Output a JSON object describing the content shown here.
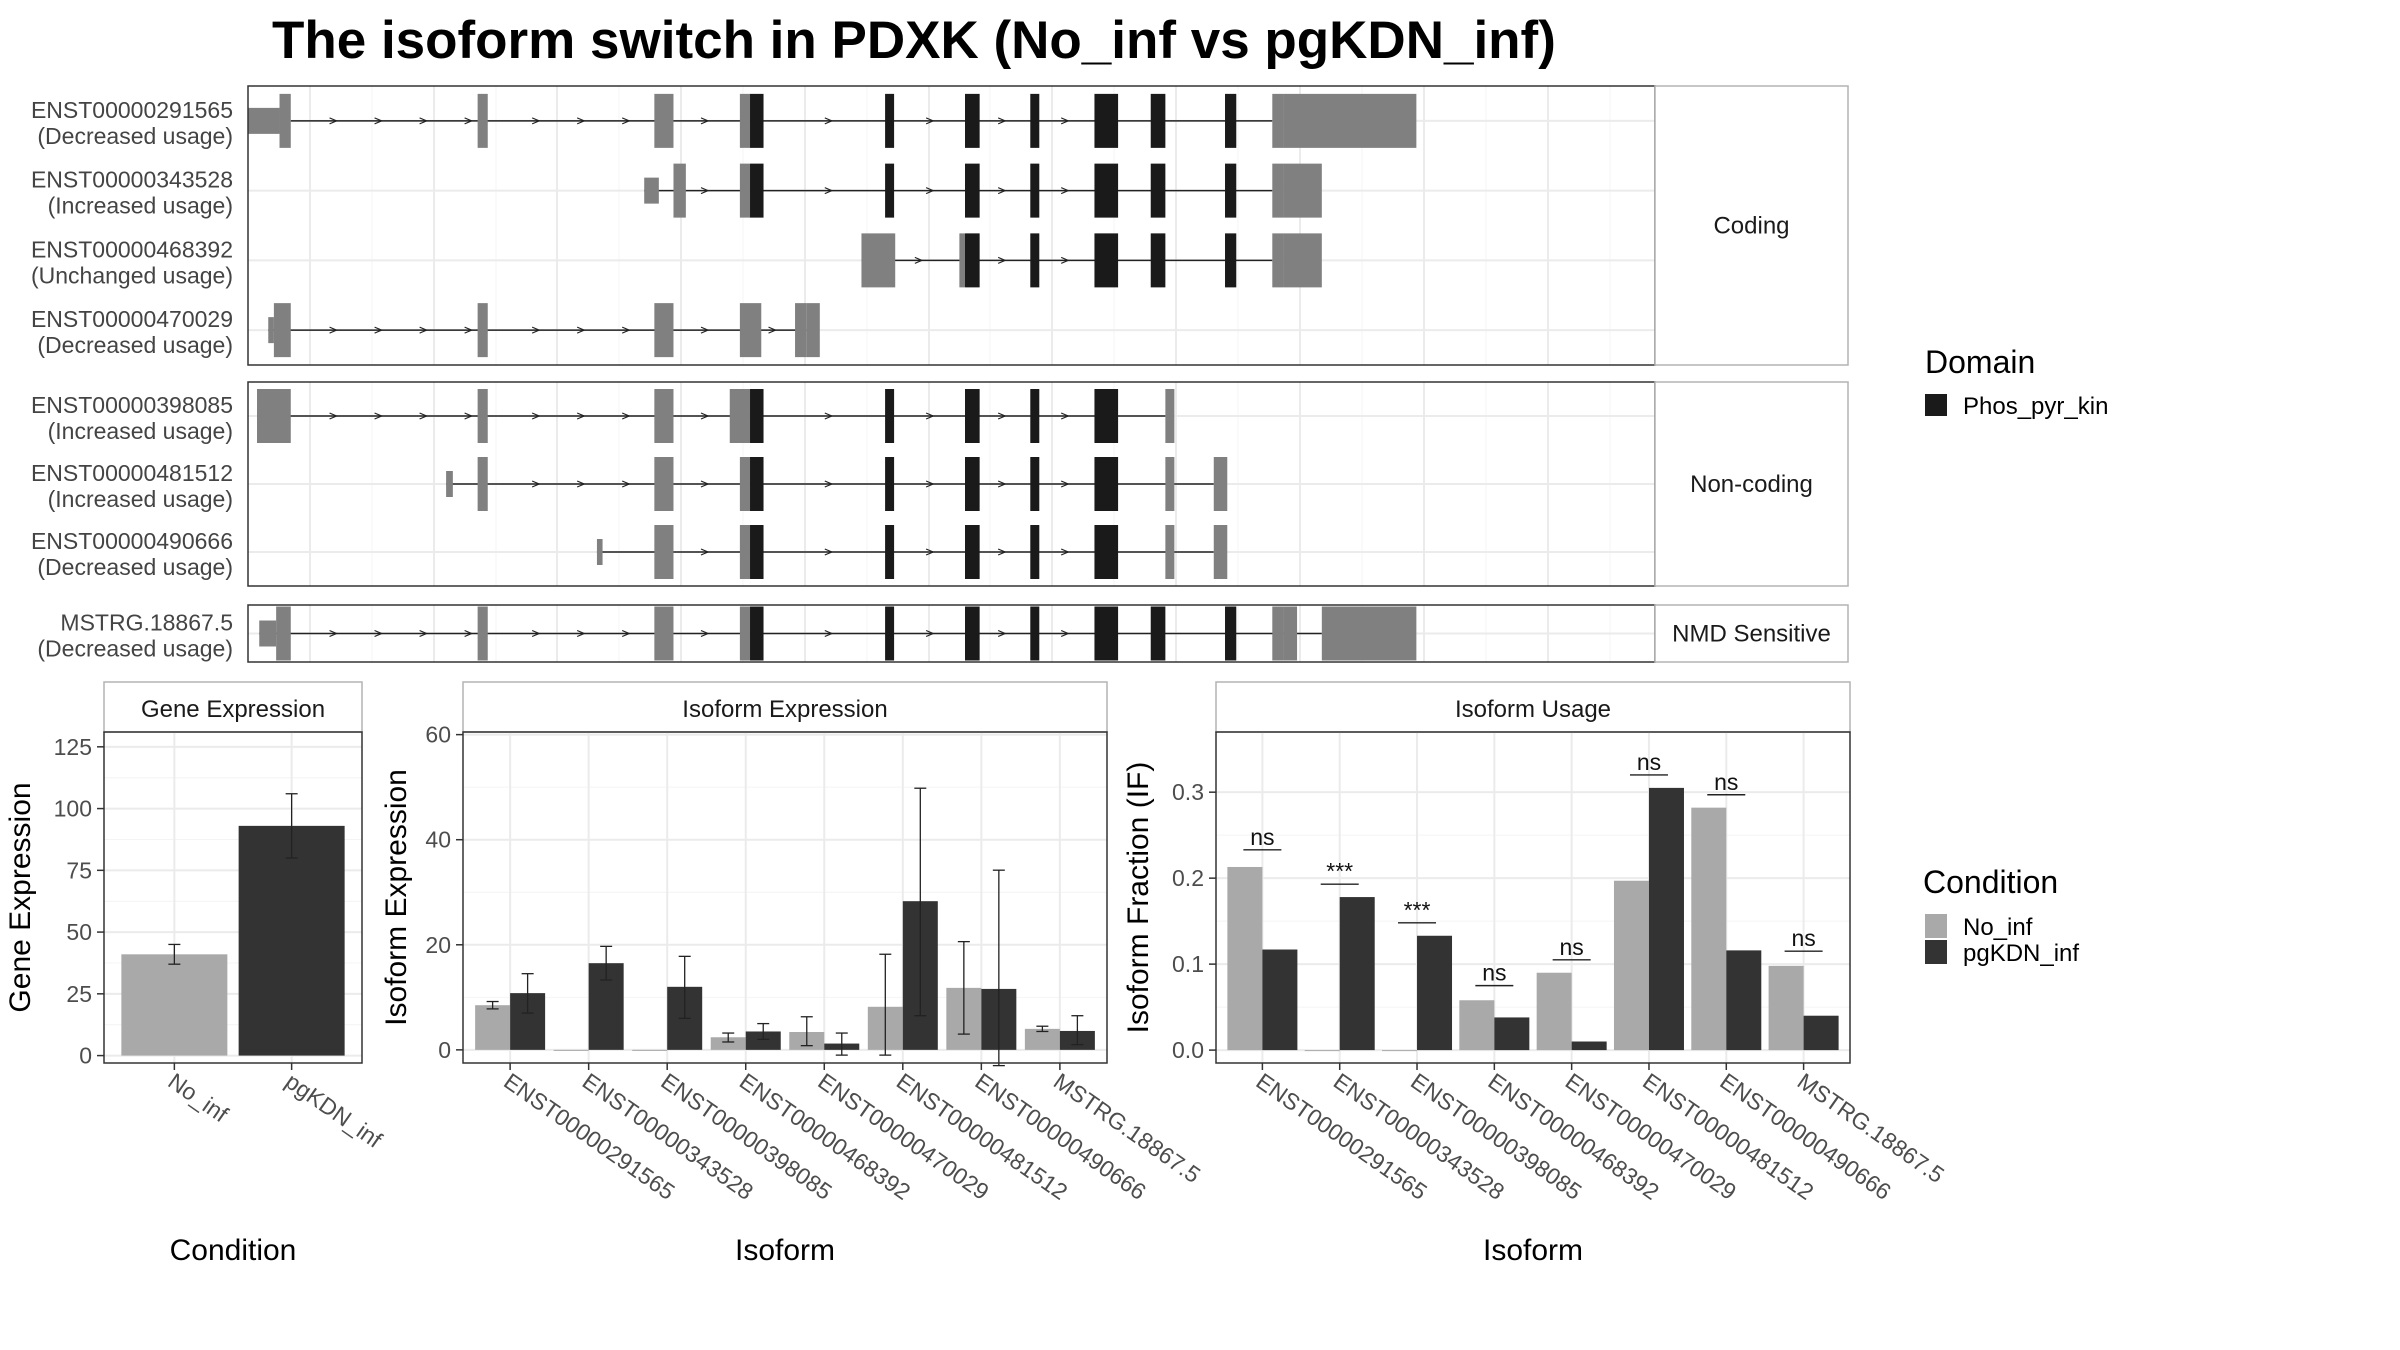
{
  "title": "The isoform switch in PDXK (No_inf vs pgKDN_inf)",
  "colors": {
    "no_inf": "#a9a9a9",
    "pgkdn_inf": "#333333",
    "domain": "#1a1a1a",
    "utr": "#808080",
    "grid": "#ebebeb",
    "panel_border": "#333333",
    "strip_border": "#b3b3b3"
  },
  "chart_data": [
    {
      "type": "gene-structure",
      "x_range": [
        0,
        1250
      ],
      "groups": [
        {
          "name": "Coding",
          "transcripts": [
            {
              "id": "ENST00000291565",
              "usage": "(Decreased usage)",
              "utr_thin": [
                [
                  0,
                  28
                ]
              ],
              "utr_thick": [
                [
                  28,
                  38
                ],
                [
                  204,
                  213
                ],
                [
                  361,
                  378
                ],
                [
                  437,
                  446
                ],
                [
                  910,
                  920
                ],
                [
                  920,
                  1038
                ]
              ],
              "domain": [
                [
                  446,
                  458
                ],
                [
                  566,
                  574
                ],
                [
                  637,
                  650
                ],
                [
                  695,
                  703
                ],
                [
                  752,
                  773
                ],
                [
                  802,
                  815
                ],
                [
                  868,
                  878
                ]
              ],
              "intron": [
                38,
                910
              ],
              "arrows": [
                76,
                116,
                156,
                196,
                256,
                296,
                336,
                406,
                516,
                606,
                670,
                726
              ]
            },
            {
              "id": "ENST00000343528",
              "usage": "(Increased usage)",
              "utr_thin": [
                [
                  352,
                  365
                ]
              ],
              "utr_thick": [
                [
                  378,
                  389
                ],
                [
                  437,
                  446
                ],
                [
                  910,
                  920
                ],
                [
                  920,
                  954
                ]
              ],
              "domain": [
                [
                  446,
                  458
                ],
                [
                  566,
                  574
                ],
                [
                  637,
                  650
                ],
                [
                  695,
                  703
                ],
                [
                  752,
                  773
                ],
                [
                  802,
                  815
                ],
                [
                  868,
                  878
                ]
              ],
              "intron": [
                352,
                910
              ],
              "arrows": [
                406,
                516,
                606,
                670,
                726
              ]
            },
            {
              "id": "ENST00000468392",
              "usage": "(Unchanged usage)",
              "utr_thin": [],
              "utr_thick": [
                [
                  545,
                  575
                ],
                [
                  632,
                  637
                ],
                [
                  910,
                  920
                ],
                [
                  920,
                  954
                ]
              ],
              "domain": [
                [
                  637,
                  650
                ],
                [
                  695,
                  703
                ],
                [
                  752,
                  773
                ],
                [
                  802,
                  815
                ],
                [
                  868,
                  878
                ]
              ],
              "intron": [
                545,
                910
              ],
              "arrows": [
                596,
                670,
                726
              ]
            },
            {
              "id": "ENST00000470029",
              "usage": "(Decreased usage)",
              "utr_thin": [
                [
                  18,
                  23
                ]
              ],
              "utr_thick": [
                [
                  23,
                  38
                ],
                [
                  204,
                  213
                ],
                [
                  361,
                  378
                ],
                [
                  437,
                  456
                ],
                [
                  486,
                  496
                ],
                [
                  496,
                  508
                ]
              ],
              "domain": [],
              "intron": [
                18,
                496
              ],
              "arrows": [
                76,
                116,
                156,
                196,
                256,
                296,
                336,
                406,
                466
              ]
            }
          ]
        },
        {
          "name": "Non-coding",
          "transcripts": [
            {
              "id": "ENST00000398085",
              "usage": "(Increased usage)",
              "utr_thin": [],
              "utr_thick": [
                [
                  8,
                  38
                ],
                [
                  204,
                  213
                ],
                [
                  361,
                  378
                ],
                [
                  428,
                  446
                ],
                [
                  815,
                  823
                ]
              ],
              "domain": [
                [
                  446,
                  458
                ],
                [
                  566,
                  574
                ],
                [
                  637,
                  650
                ],
                [
                  695,
                  703
                ],
                [
                  752,
                  773
                ]
              ],
              "intron": [
                8,
                815
              ],
              "arrows": [
                76,
                116,
                156,
                196,
                256,
                296,
                336,
                406,
                516,
                606,
                670,
                726
              ]
            },
            {
              "id": "ENST00000481512",
              "usage": "(Increased usage)",
              "utr_thin": [
                [
                  176,
                  182
                ]
              ],
              "utr_thick": [
                [
                  204,
                  213
                ],
                [
                  361,
                  378
                ],
                [
                  437,
                  446
                ],
                [
                  815,
                  823
                ],
                [
                  858,
                  870
                ]
              ],
              "domain": [
                [
                  446,
                  458
                ],
                [
                  566,
                  574
                ],
                [
                  637,
                  650
                ],
                [
                  695,
                  703
                ],
                [
                  752,
                  773
                ]
              ],
              "intron": [
                176,
                858
              ],
              "arrows": [
                256,
                296,
                336,
                406,
                516,
                606,
                670,
                726
              ]
            },
            {
              "id": "ENST00000490666",
              "usage": "(Decreased usage)",
              "utr_thin": [
                [
                  310,
                  315
                ]
              ],
              "utr_thick": [
                [
                  361,
                  378
                ],
                [
                  437,
                  446
                ],
                [
                  815,
                  823
                ],
                [
                  858,
                  870
                ]
              ],
              "domain": [
                [
                  446,
                  458
                ],
                [
                  566,
                  574
                ],
                [
                  637,
                  650
                ],
                [
                  695,
                  703
                ],
                [
                  752,
                  773
                ]
              ],
              "intron": [
                310,
                858
              ],
              "arrows": [
                406,
                516,
                606,
                670,
                726
              ]
            }
          ]
        },
        {
          "name": "NMD Sensitive",
          "transcripts": [
            {
              "id": "MSTRG.18867.5",
              "usage": "(Decreased usage)",
              "utr_thin": [
                [
                  10,
                  25
                ]
              ],
              "utr_thick": [
                [
                  25,
                  38
                ],
                [
                  204,
                  213
                ],
                [
                  361,
                  378
                ],
                [
                  437,
                  446
                ],
                [
                  910,
                  920
                ],
                [
                  920,
                  932
                ],
                [
                  954,
                  1038
                ]
              ],
              "domain": [
                [
                  446,
                  458
                ],
                [
                  566,
                  574
                ],
                [
                  637,
                  650
                ],
                [
                  695,
                  703
                ],
                [
                  752,
                  773
                ],
                [
                  802,
                  815
                ],
                [
                  868,
                  878
                ]
              ],
              "intron": [
                10,
                954
              ],
              "arrows": [
                76,
                116,
                156,
                196,
                256,
                296,
                336,
                406,
                516,
                606,
                670,
                726
              ]
            }
          ]
        }
      ],
      "legend": {
        "title": "Domain",
        "entries": [
          "Phos_pyr_kin"
        ]
      }
    },
    {
      "type": "bar",
      "strip": "Gene Expression",
      "xlabel": "Condition",
      "ylabel": "Gene Expression",
      "ylim": [
        -3,
        131
      ],
      "yticks": [
        0,
        25,
        50,
        75,
        100,
        125
      ],
      "categories": [
        "No_inf",
        "pgKDN_inf"
      ],
      "values": [
        41,
        93
      ],
      "errors": [
        [
          37,
          45
        ],
        [
          80,
          106
        ]
      ]
    },
    {
      "type": "bar",
      "strip": "Isoform Expression",
      "xlabel": "Isoform",
      "ylabel": "Isoform Expression",
      "ylim": [
        -2.5,
        60.5
      ],
      "yticks": [
        0,
        20,
        40,
        60
      ],
      "categories": [
        "ENST00000291565",
        "ENST00000343528",
        "ENST00000398085",
        "ENST00000468392",
        "ENST00000470029",
        "ENST00000481512",
        "ENST00000490666",
        "MSTRG.18867.5"
      ],
      "series": [
        {
          "name": "No_inf",
          "values": [
            8.5,
            0,
            0,
            2.4,
            3.4,
            8.2,
            11.8,
            4
          ],
          "errors": [
            [
              7.8,
              9.2
            ],
            null,
            null,
            [
              1.5,
              3.2
            ],
            [
              0.8,
              6.3
            ],
            [
              -1,
              18.2
            ],
            [
              3,
              20.6
            ],
            [
              3.5,
              4.5
            ]
          ]
        },
        {
          "name": "pgKDN_inf",
          "values": [
            10.8,
            16.5,
            12,
            3.5,
            1.2,
            28.3,
            11.6,
            3.6
          ],
          "errors": [
            [
              7,
              14.5
            ],
            [
              13.3,
              19.7
            ],
            [
              6,
              17.8
            ],
            [
              2,
              5
            ],
            [
              -1,
              3.2
            ],
            [
              6.5,
              49.8
            ],
            [
              -3,
              34.2
            ],
            [
              1,
              6.5
            ]
          ]
        }
      ]
    },
    {
      "type": "bar",
      "strip": "Isoform Usage",
      "xlabel": "Isoform",
      "ylabel": "Isoform Fraction (IF)",
      "ylim": [
        -0.015,
        0.37
      ],
      "yticks": [
        "0.0",
        "0.1",
        "0.2",
        "0.3"
      ],
      "categories": [
        "ENST00000291565",
        "ENST00000343528",
        "ENST00000398085",
        "ENST00000468392",
        "ENST00000470029",
        "ENST00000481512",
        "ENST00000490666",
        "MSTRG.18867.5"
      ],
      "series": [
        {
          "name": "No_inf",
          "values": [
            0.213,
            0,
            0,
            0.058,
            0.09,
            0.197,
            0.282,
            0.098
          ]
        },
        {
          "name": "pgKDN_inf",
          "values": [
            0.117,
            0.178,
            0.133,
            0.038,
            0.01,
            0.305,
            0.116,
            0.04
          ]
        }
      ],
      "annotations": [
        "ns",
        "***",
        "***",
        "ns",
        "ns",
        "ns",
        "ns",
        "ns"
      ],
      "annotation_y": [
        0.233,
        0.193,
        0.148,
        0.075,
        0.105,
        0.32,
        0.297,
        0.115
      ]
    }
  ],
  "condition_legend": {
    "title": "Condition",
    "entries": [
      "No_inf",
      "pgKDN_inf"
    ]
  }
}
